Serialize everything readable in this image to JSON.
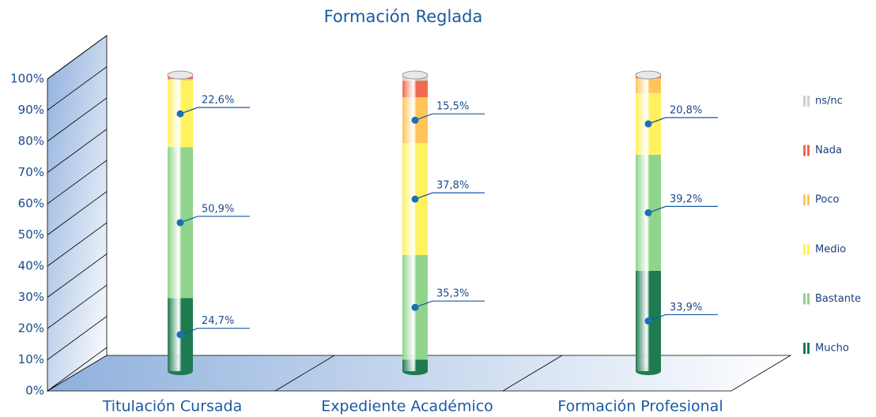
{
  "chart_data": {
    "type": "stacked_bar_3d",
    "title": "Formación Reglada",
    "categories": [
      "Titulación Cursada",
      "Expediente Académico",
      "Formación Profesional"
    ],
    "series": [
      {
        "name": "Mucho",
        "color": "#1e7a50",
        "values": [
          24.7,
          3.9,
          33.9
        ],
        "value_labels": [
          "24,7%",
          null,
          "33,9%"
        ]
      },
      {
        "name": "Bastante",
        "color": "#8fd48a",
        "values": [
          50.9,
          35.3,
          39.2
        ],
        "value_labels": [
          "50,9%",
          "35,3%",
          "39,2%"
        ]
      },
      {
        "name": "Medio",
        "color": "#fff25e",
        "values": [
          22.6,
          37.8,
          20.8
        ],
        "value_labels": [
          "22,6%",
          "37,8%",
          "20,8%"
        ]
      },
      {
        "name": "Poco",
        "color": "#ffc45a",
        "values": [
          0.4,
          15.5,
          5.0
        ],
        "value_labels": [
          null,
          "15,5%",
          null
        ]
      },
      {
        "name": "Nada",
        "color": "#ef6a4f",
        "values": [
          0.9,
          5.6,
          0.6
        ],
        "value_labels": [
          null,
          null,
          null
        ]
      },
      {
        "name": "ns/nc",
        "color": "#cfcfcf",
        "values": [
          0.5,
          1.9,
          0.5
        ],
        "value_labels": [
          null,
          null,
          null
        ]
      }
    ],
    "ylim": [
      0,
      100
    ],
    "yticks": [
      {
        "value": 0,
        "label": "0%"
      },
      {
        "value": 10,
        "label": "10%"
      },
      {
        "value": 20,
        "label": "20%"
      },
      {
        "value": 30,
        "label": "30%"
      },
      {
        "value": 40,
        "label": "40%"
      },
      {
        "value": 50,
        "label": "50%"
      },
      {
        "value": 60,
        "label": "60%"
      },
      {
        "value": 70,
        "label": "70%"
      },
      {
        "value": 80,
        "label": "80%"
      },
      {
        "value": 90,
        "label": "90%"
      },
      {
        "value": 100,
        "label": "100%"
      }
    ],
    "grid": true
  }
}
